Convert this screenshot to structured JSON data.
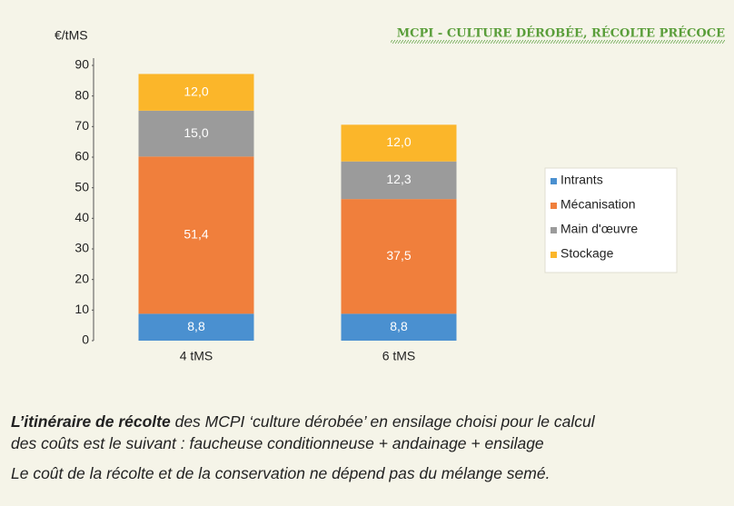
{
  "chart_data": {
    "type": "stacked_bar",
    "title": "MCPI - CULTURE DÉROBÉE, RÉCOLTE PRÉCOCE",
    "y_axis_label": "€/tMS",
    "categories": [
      "4 tMS",
      "6 tMS"
    ],
    "series": [
      {
        "name": "Intrants",
        "color": "#4a90d0",
        "values": [
          8.8,
          8.8
        ],
        "value_labels": [
          "8,8",
          "8,8"
        ]
      },
      {
        "name": "Mécanisation",
        "color": "#f07f3c",
        "values": [
          51.4,
          37.5
        ],
        "value_labels": [
          "51,4",
          "37,5"
        ]
      },
      {
        "name": "Main d'œuvre",
        "color": "#9b9b9b",
        "values": [
          15.0,
          12.3
        ],
        "value_labels": [
          "15,0",
          "12,3"
        ]
      },
      {
        "name": "Stockage",
        "color": "#fbb62a",
        "values": [
          12.0,
          12.0
        ],
        "value_labels": [
          "12,0",
          "12,0"
        ]
      }
    ],
    "ylim": [
      0,
      90
    ],
    "yticks": [
      0,
      10,
      20,
      30,
      40,
      50,
      60,
      70,
      80,
      90
    ],
    "grid": false,
    "legend": "right"
  },
  "caption": {
    "lead": "L’itinéraire de récolte",
    "line1": " des MCPI ‘culture dérobée’ en ensilage choisi pour le calcul",
    "line2": "des coûts est le suivant : faucheuse conditionneuse + andainage + ensilage"
  },
  "note": "Le coût de la récolte et de la conservation ne dépend pas du mélange semé."
}
